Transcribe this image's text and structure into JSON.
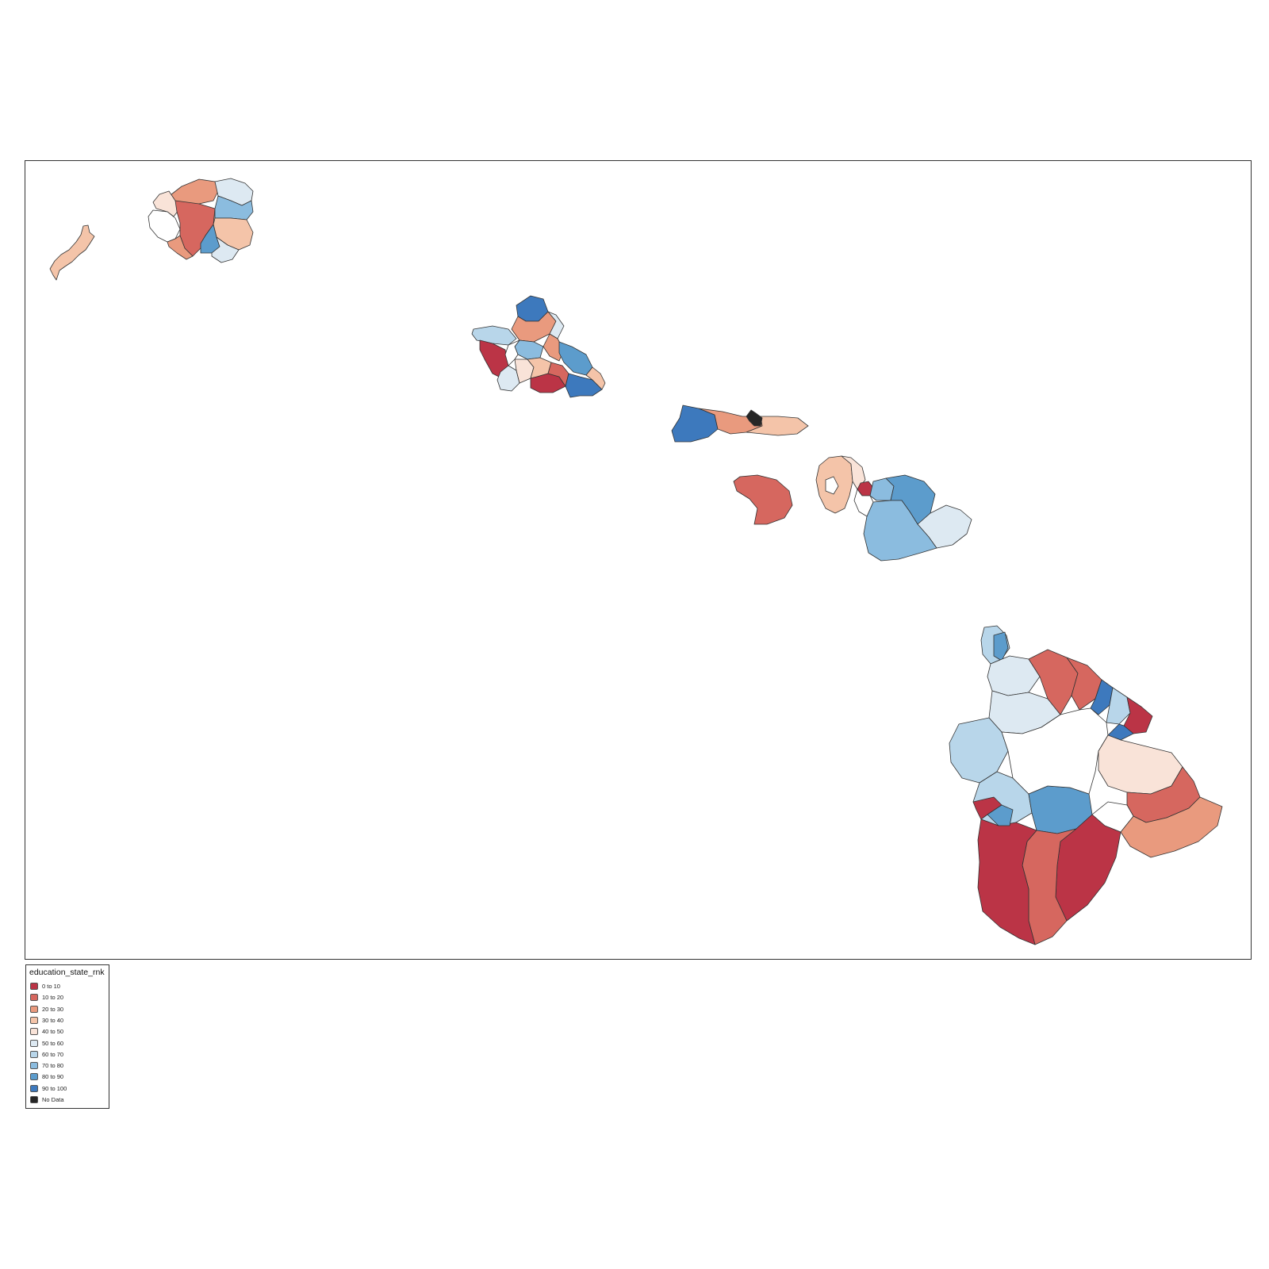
{
  "legend": {
    "title": "education_state_rnk",
    "items": [
      {
        "label": "0 to 10",
        "color": "#bb3446"
      },
      {
        "label": "10 to 20",
        "color": "#d6675f"
      },
      {
        "label": "20 to 30",
        "color": "#e99a7e"
      },
      {
        "label": "30 to 40",
        "color": "#f4c4a9"
      },
      {
        "label": "40 to 50",
        "color": "#f9e3d8"
      },
      {
        "label": "50 to 60",
        "color": "#dde9f2"
      },
      {
        "label": "60 to 70",
        "color": "#b8d6ea"
      },
      {
        "label": "70 to 80",
        "color": "#8bbcdf"
      },
      {
        "label": "80 to 90",
        "color": "#5c9ccc"
      },
      {
        "label": "90 to 100",
        "color": "#3d79bd"
      },
      {
        "label": "No Data",
        "color": "#262626"
      }
    ]
  },
  "map": {
    "region": "Hawaii",
    "islands": [
      "Niihau",
      "Kauai",
      "Oahu",
      "Molokai",
      "Lanai",
      "Maui",
      "Hawaii"
    ],
    "outline_color": "#333333",
    "missing_color": "#ffffff"
  }
}
